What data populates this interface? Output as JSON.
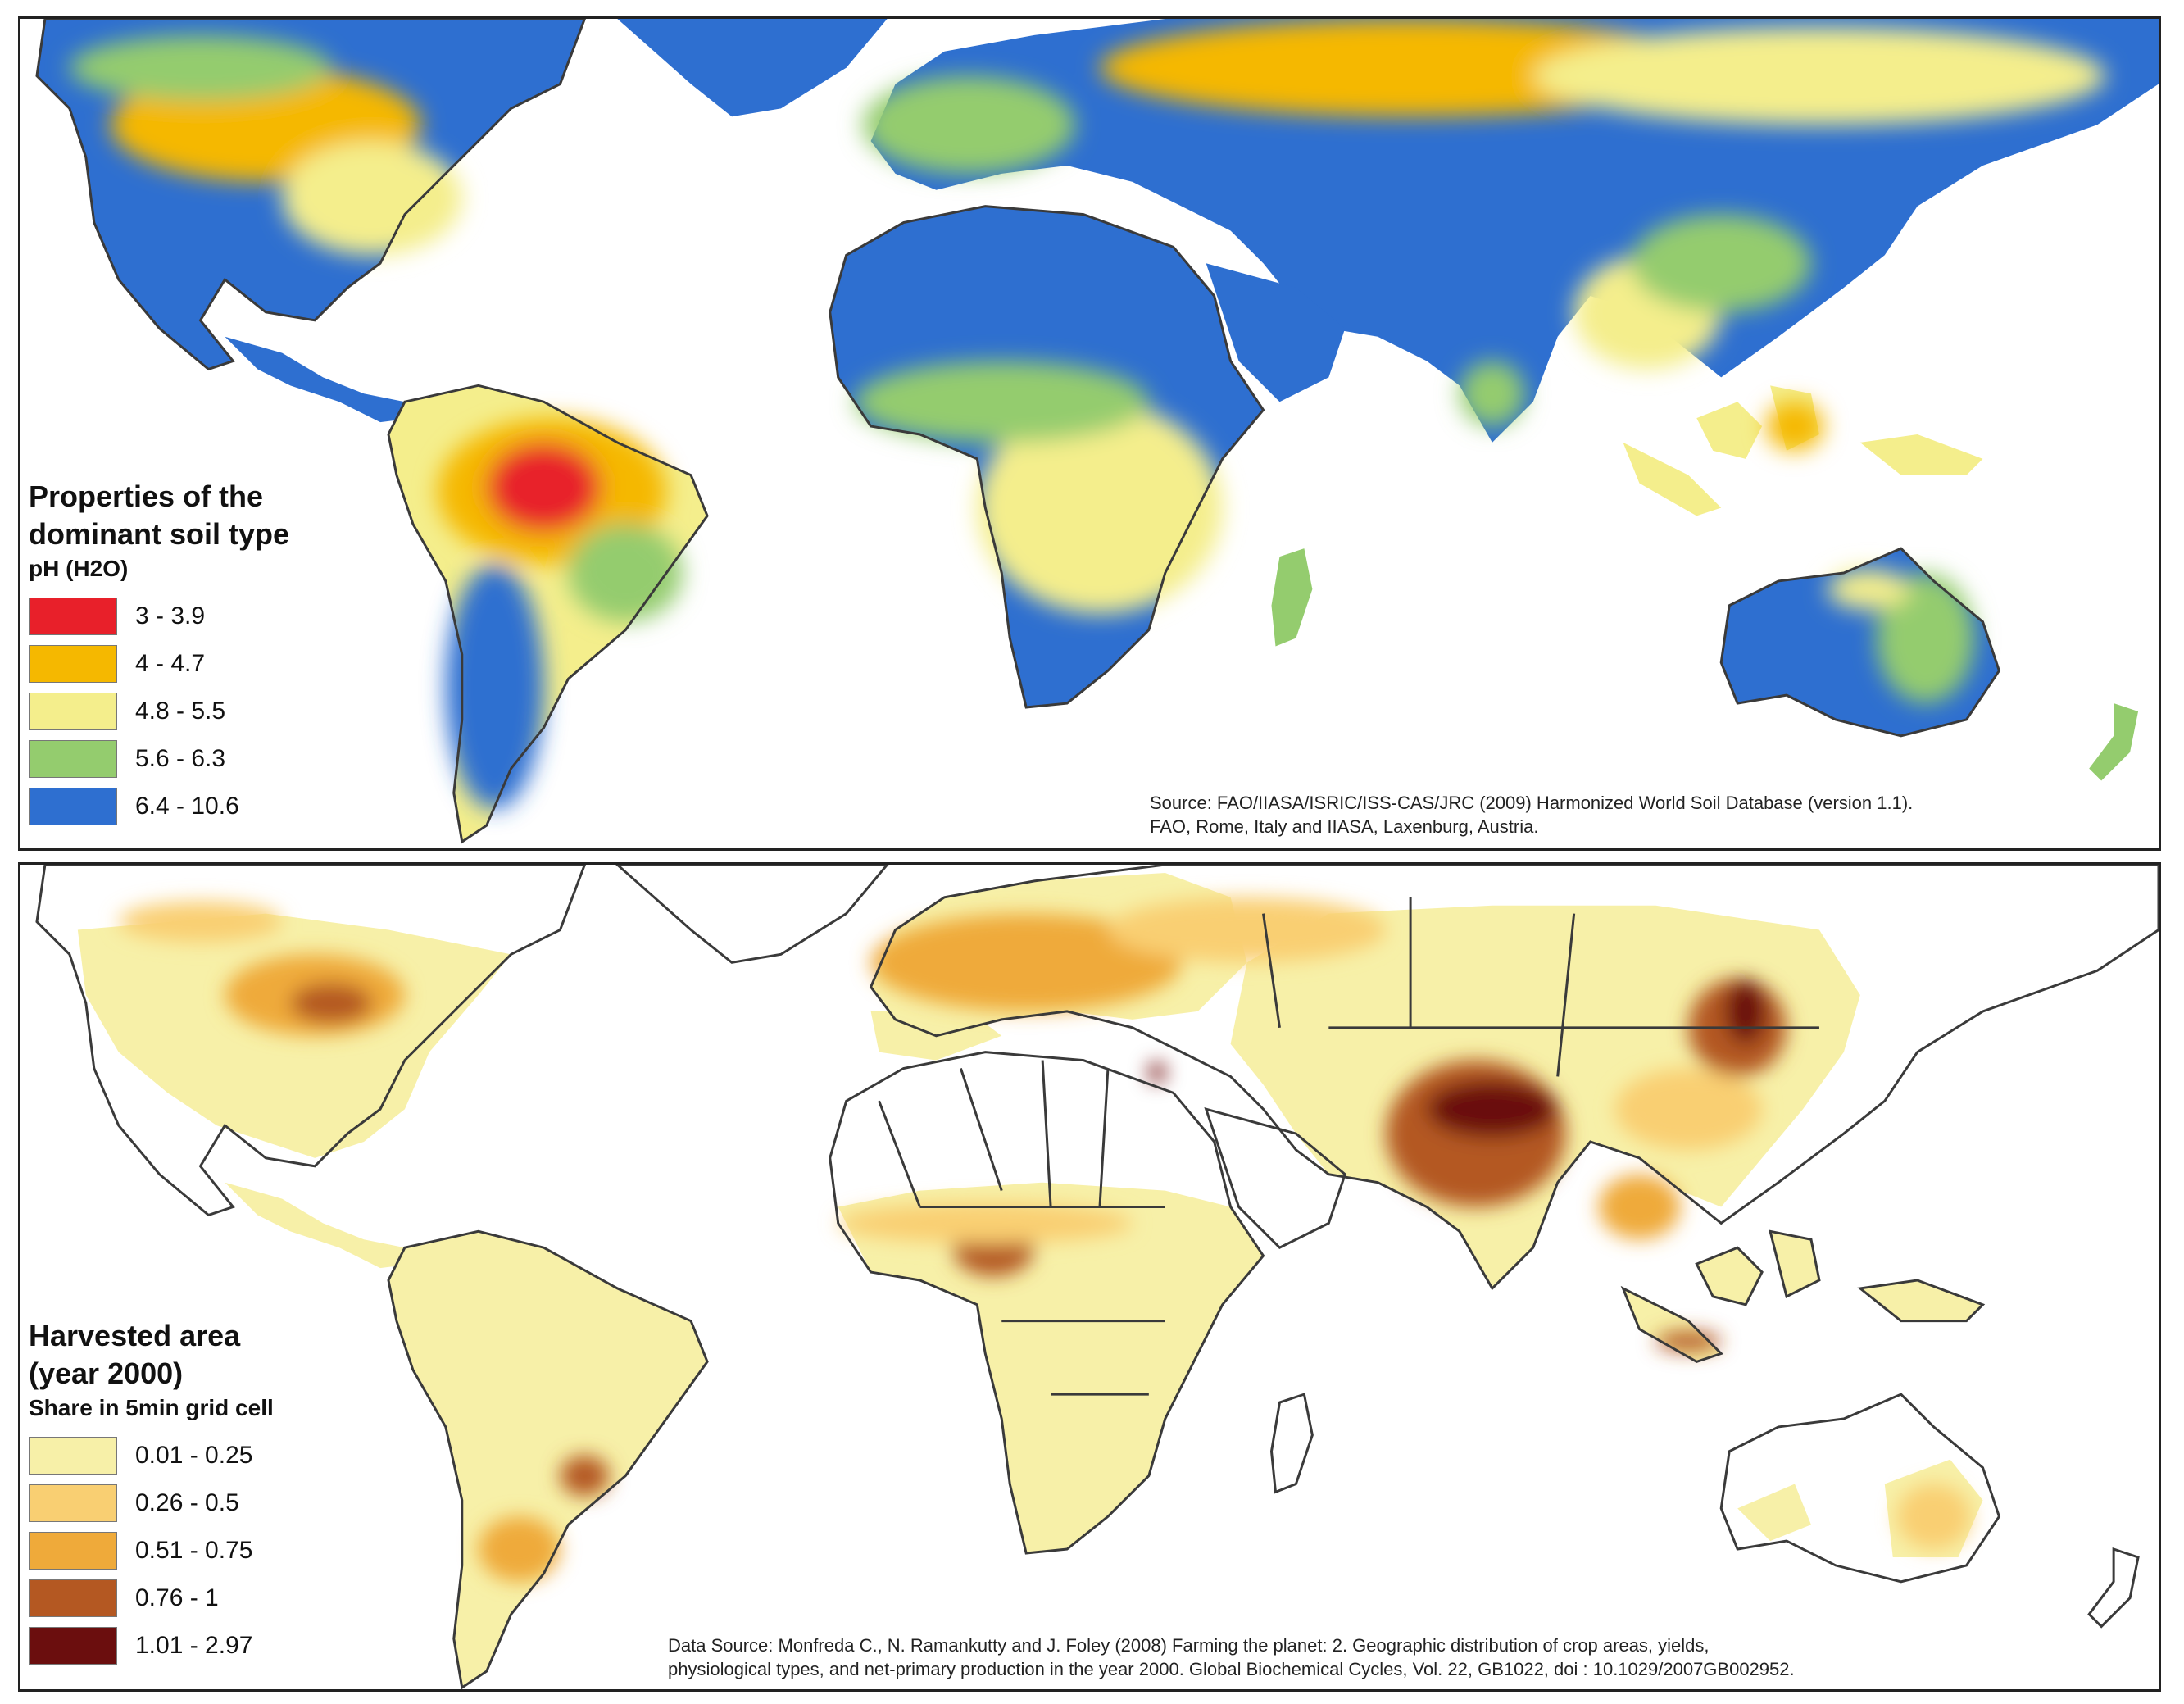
{
  "colors": {
    "ph": [
      "#e8202a",
      "#f5b800",
      "#f4ee8c",
      "#94cc6e",
      "#2e6fd0"
    ],
    "harvested": [
      "#f7f0a8",
      "#f9cf72",
      "#efaa3a",
      "#b45822",
      "#6b0e0e"
    ],
    "land_outline": "#3a3a3a"
  },
  "panel_ph": {
    "title_line1": "Properties of the",
    "title_line2": "dominant soil type",
    "subtitle": "pH (H2O)",
    "legend": [
      {
        "label": "3 - 3.9"
      },
      {
        "label": "4 - 4.7"
      },
      {
        "label": "4.8 - 5.5"
      },
      {
        "label": "5.6 - 6.3"
      },
      {
        "label": "6.4 - 10.6"
      }
    ],
    "source_line1": "Source: FAO/IIASA/ISRIC/ISS-CAS/JRC (2009) Harmonized World Soil Database (version 1.1).",
    "source_line2": "FAO, Rome, Italy and IIASA, Laxenburg, Austria."
  },
  "panel_harvested": {
    "title_line1": "Harvested area",
    "title_line2": "(year 2000)",
    "subtitle": "Share in 5min grid cell",
    "legend": [
      {
        "label": "0.01 - 0.25"
      },
      {
        "label": "0.26 - 0.5"
      },
      {
        "label": "0.51 - 0.75"
      },
      {
        "label": "0.76 - 1"
      },
      {
        "label": "1.01 - 2.97"
      }
    ],
    "source_line1": "Data Source: Monfreda C., N. Ramankutty and J. Foley (2008) Farming the planet: 2. Geographic distribution of crop areas, yields,",
    "source_line2": "physiological types, and net-primary production in the year 2000. Global Biochemical Cycles, Vol. 22, GB1022, doi : 10.1029/2007GB002952."
  }
}
